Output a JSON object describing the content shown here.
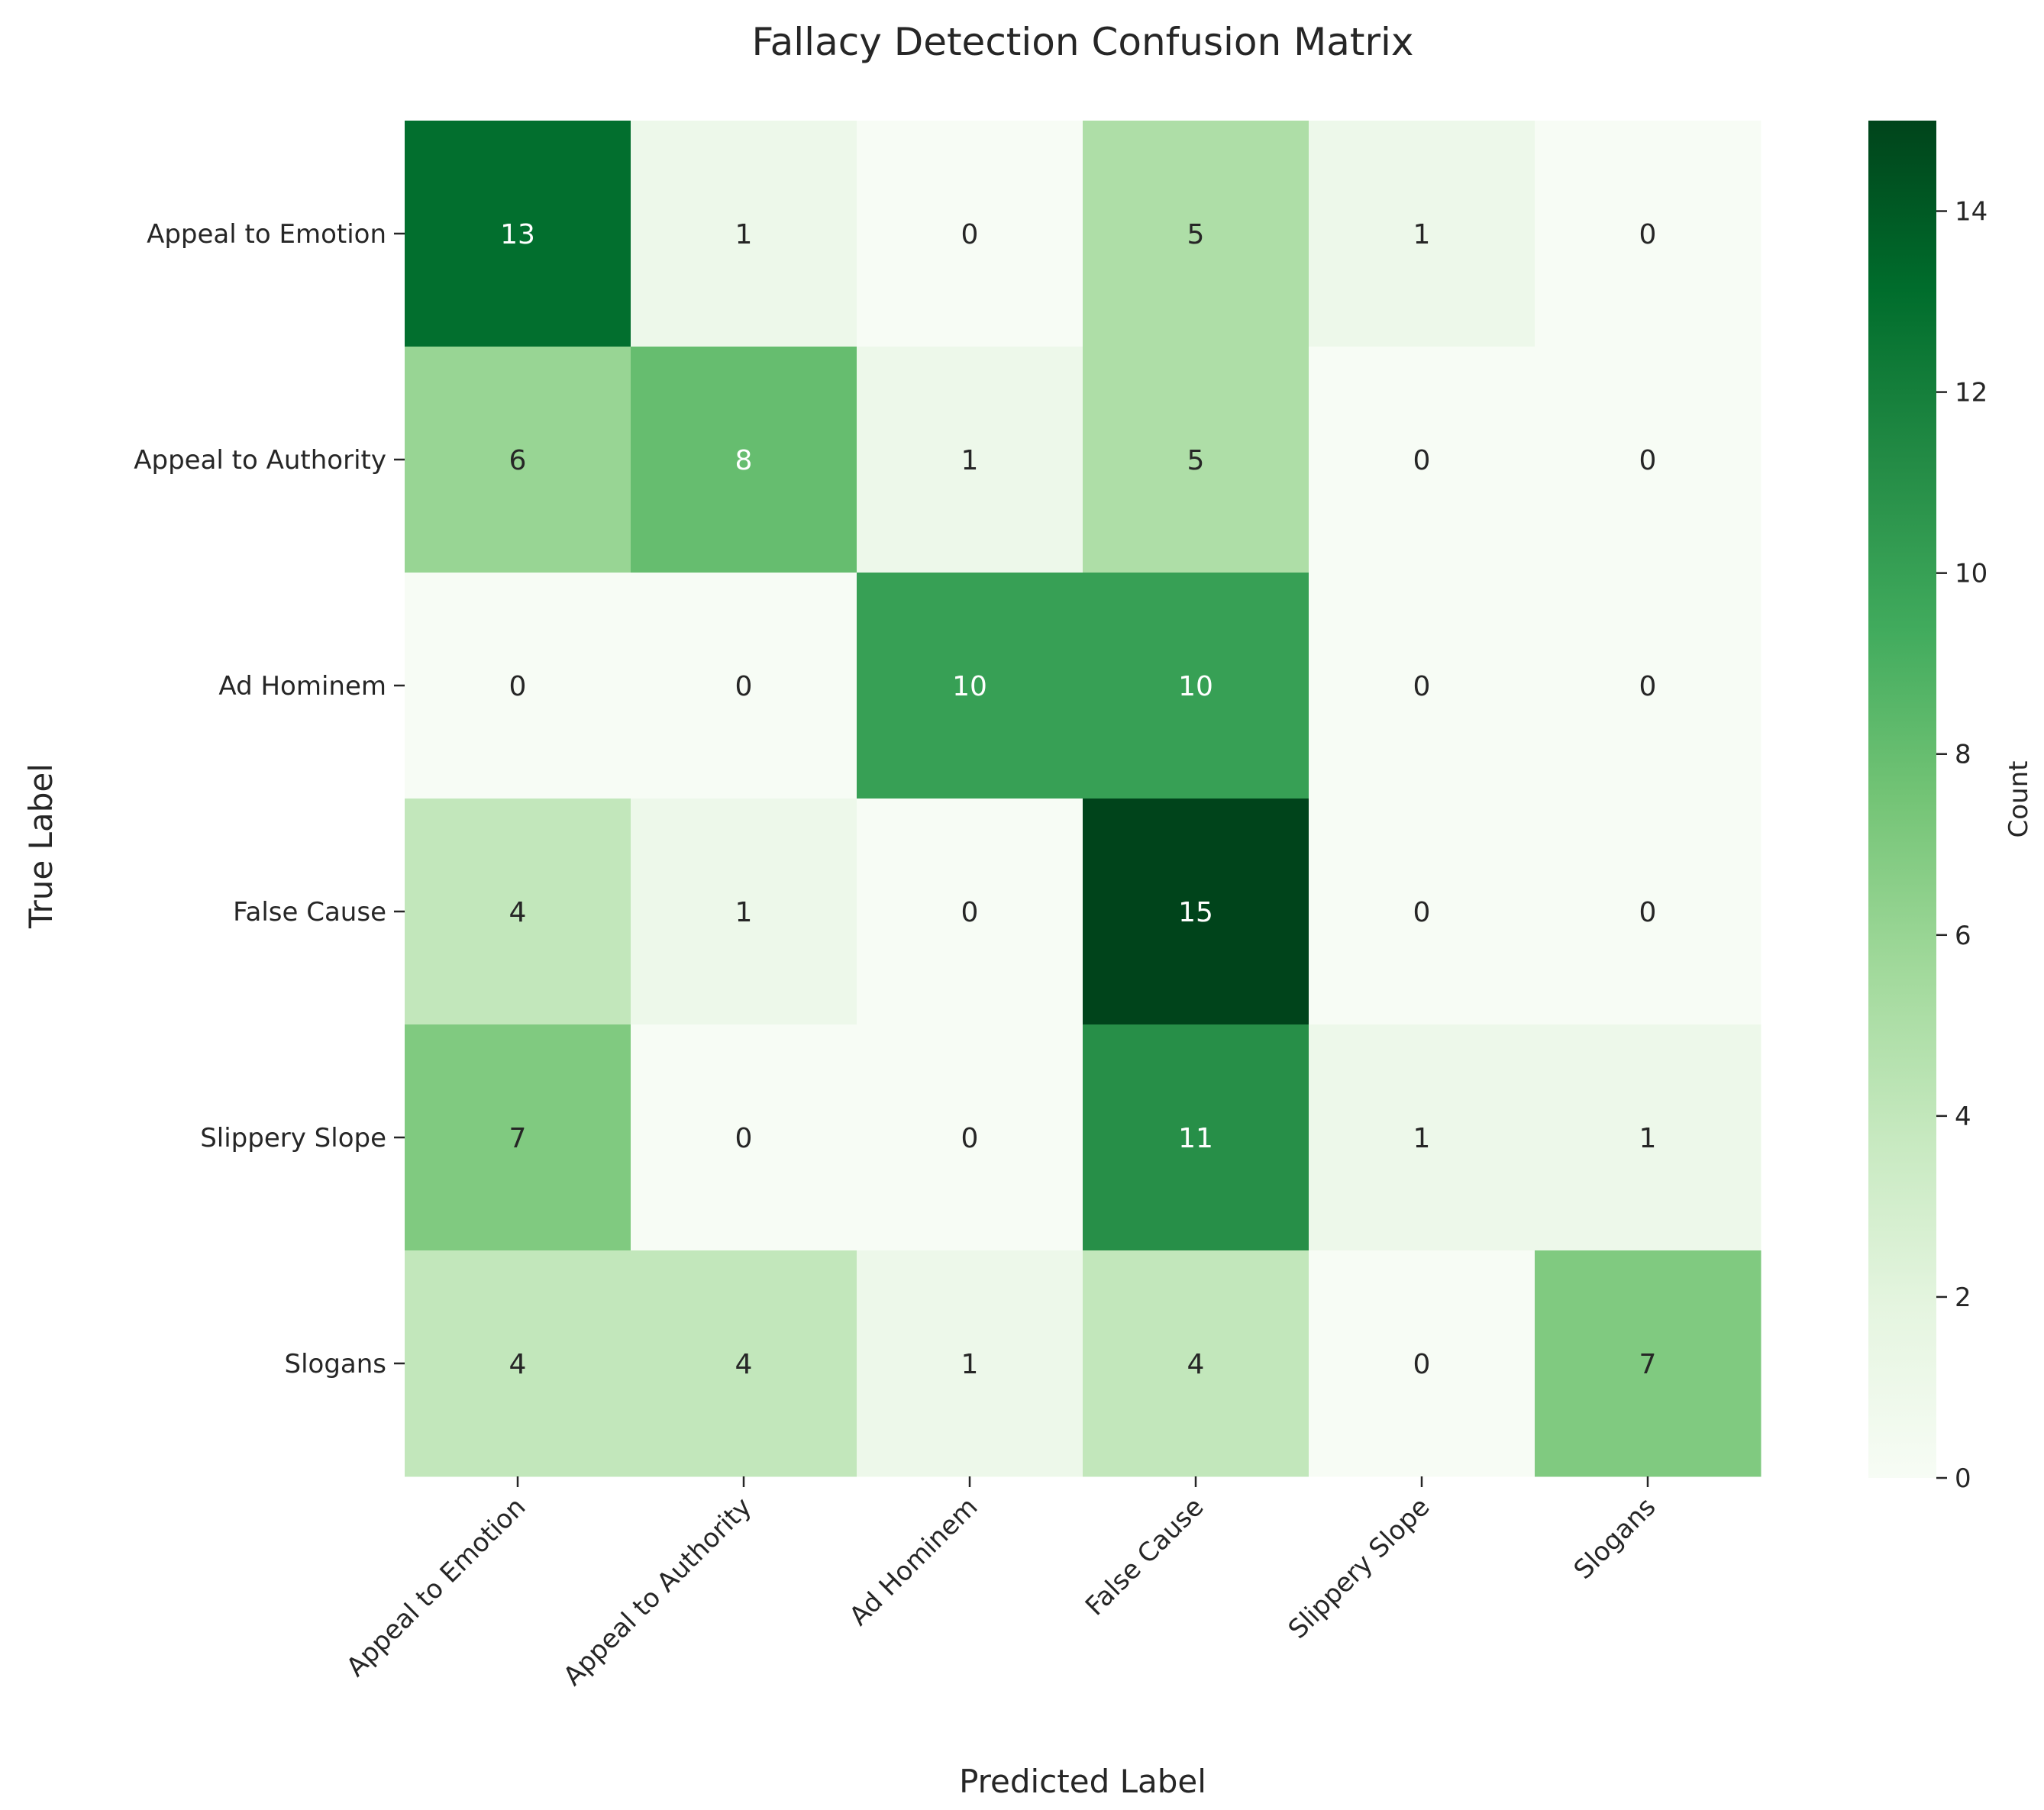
{
  "chart_data": {
    "type": "heatmap",
    "title": "Fallacy Detection Confusion Matrix",
    "xlabel": "Predicted Label",
    "ylabel": "True Label",
    "x_categories": [
      "Appeal to Emotion",
      "Appeal to Authority",
      "Ad Hominem",
      "False Cause",
      "Slippery Slope",
      "Slogans"
    ],
    "y_categories": [
      "Appeal to Emotion",
      "Appeal to Authority",
      "Ad Hominem",
      "False Cause",
      "Slippery Slope",
      "Slogans"
    ],
    "values": [
      [
        13,
        1,
        0,
        5,
        1,
        0
      ],
      [
        6,
        8,
        1,
        5,
        0,
        0
      ],
      [
        0,
        0,
        10,
        10,
        0,
        0
      ],
      [
        4,
        1,
        0,
        15,
        0,
        0
      ],
      [
        7,
        0,
        0,
        11,
        1,
        1
      ],
      [
        4,
        4,
        1,
        4,
        0,
        7
      ]
    ],
    "colorbar": {
      "label": "Count",
      "range": [
        0,
        15
      ],
      "ticks": [
        0,
        2,
        4,
        6,
        8,
        10,
        12,
        14
      ]
    },
    "colormap": "Greens",
    "colormap_stops": [
      "#f7fcf5",
      "#e5f5e0",
      "#c7e9c0",
      "#a1d99b",
      "#74c476",
      "#41ab5d",
      "#238b45",
      "#006d2c",
      "#00441b"
    ],
    "text_colors": {
      "dark": "#262626",
      "light": "#ffffff"
    }
  }
}
